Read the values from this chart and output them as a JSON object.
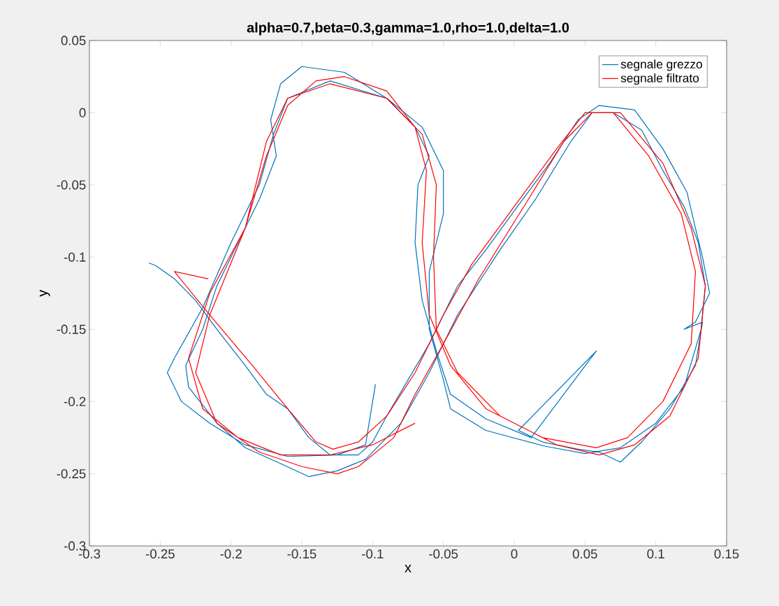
{
  "chart_data": {
    "type": "line",
    "title": "alpha=0.7,beta=0.3,gamma=1.0,rho=1.0,delta=1.0",
    "xlabel": "x",
    "ylabel": "y",
    "xlim": [
      -0.3,
      0.15
    ],
    "ylim": [
      -0.3,
      0.05
    ],
    "xticks": [
      -0.3,
      -0.25,
      -0.2,
      -0.15,
      -0.1,
      -0.05,
      0,
      0.05,
      0.1,
      0.15
    ],
    "yticks": [
      -0.3,
      -0.25,
      -0.2,
      -0.15,
      -0.1,
      -0.05,
      0,
      0.05
    ],
    "grid": false,
    "legend": "top right",
    "marker": "none",
    "line_style": "solid",
    "series": [
      {
        "name": "segnale grezzo",
        "color": "#0072bd",
        "x": [
          -0.258,
          -0.253,
          -0.24,
          -0.225,
          -0.21,
          -0.19,
          -0.175,
          -0.16,
          -0.145,
          -0.13,
          -0.11,
          -0.1,
          -0.09,
          -0.075,
          -0.06,
          -0.04,
          -0.02,
          0.0,
          0.025,
          0.045,
          0.06,
          0.085,
          0.105,
          0.122,
          0.128,
          0.133,
          0.138,
          0.128,
          0.12,
          0.133,
          0.128,
          0.11,
          0.09,
          0.075,
          0.06,
          0.045,
          0.02,
          0.003,
          0.058,
          0.012,
          -0.02,
          -0.045,
          -0.055,
          -0.065,
          -0.07,
          -0.068,
          -0.06,
          -0.07,
          -0.09,
          -0.12,
          -0.15,
          -0.165,
          -0.172,
          -0.168,
          -0.18,
          -0.195,
          -0.21,
          -0.22,
          -0.232,
          -0.23,
          -0.21,
          -0.19,
          -0.165,
          -0.145,
          -0.125,
          -0.105,
          -0.095,
          -0.08,
          -0.06,
          -0.04,
          -0.01,
          0.015,
          0.04,
          0.055,
          0.07,
          0.09,
          0.105,
          0.12,
          0.13,
          0.135,
          0.132,
          0.12,
          0.1,
          0.075,
          0.05,
          0.022,
          -0.02,
          -0.045,
          -0.05,
          -0.06,
          -0.06,
          -0.05,
          -0.05,
          -0.065,
          -0.09,
          -0.13,
          -0.16,
          -0.17,
          -0.18,
          -0.2,
          -0.22,
          -0.24,
          -0.245,
          -0.235,
          -0.215,
          -0.19,
          -0.16,
          -0.125,
          -0.105,
          -0.1,
          -0.098
        ],
        "values": [
          -0.104,
          -0.106,
          -0.115,
          -0.13,
          -0.15,
          -0.175,
          -0.195,
          -0.205,
          -0.225,
          -0.237,
          -0.237,
          -0.228,
          -0.21,
          -0.185,
          -0.16,
          -0.12,
          -0.095,
          -0.068,
          -0.035,
          -0.005,
          0.005,
          0.002,
          -0.025,
          -0.055,
          -0.08,
          -0.1,
          -0.125,
          -0.145,
          -0.15,
          -0.145,
          -0.175,
          -0.205,
          -0.228,
          -0.242,
          -0.235,
          -0.233,
          -0.228,
          -0.22,
          -0.165,
          -0.225,
          -0.212,
          -0.195,
          -0.165,
          -0.13,
          -0.09,
          -0.05,
          -0.03,
          -0.01,
          0.01,
          0.028,
          0.032,
          0.02,
          -0.005,
          -0.03,
          -0.06,
          -0.09,
          -0.12,
          -0.15,
          -0.175,
          -0.19,
          -0.215,
          -0.232,
          -0.243,
          -0.252,
          -0.248,
          -0.24,
          -0.23,
          -0.215,
          -0.18,
          -0.14,
          -0.095,
          -0.06,
          -0.02,
          0.0,
          0.0,
          -0.012,
          -0.04,
          -0.065,
          -0.09,
          -0.12,
          -0.15,
          -0.19,
          -0.215,
          -0.232,
          -0.236,
          -0.231,
          -0.22,
          -0.205,
          -0.185,
          -0.15,
          -0.11,
          -0.07,
          -0.04,
          -0.01,
          0.01,
          0.022,
          0.01,
          -0.015,
          -0.05,
          -0.09,
          -0.135,
          -0.17,
          -0.18,
          -0.2,
          -0.215,
          -0.23,
          -0.238,
          -0.237,
          -0.23,
          -0.2,
          -0.188
        ]
      },
      {
        "name": "segnale filtrato",
        "color": "#ff0000",
        "x": [
          -0.216,
          -0.24,
          -0.215,
          -0.185,
          -0.16,
          -0.14,
          -0.128,
          -0.11,
          -0.09,
          -0.07,
          -0.05,
          -0.03,
          0.0,
          0.03,
          0.05,
          0.07,
          0.095,
          0.118,
          0.128,
          0.125,
          0.105,
          0.08,
          0.058,
          0.02,
          -0.02,
          -0.045,
          -0.06,
          -0.065,
          -0.062,
          -0.07,
          -0.09,
          -0.12,
          -0.14,
          -0.16,
          -0.175,
          -0.19,
          -0.215,
          -0.225,
          -0.21,
          -0.18,
          -0.15,
          -0.125,
          -0.11,
          -0.085,
          -0.07,
          -0.05,
          -0.025,
          0.01,
          0.035,
          0.055,
          0.075,
          0.105,
          0.125,
          0.135,
          0.13,
          0.11,
          0.085,
          0.06,
          0.03,
          -0.01,
          -0.04,
          -0.055,
          -0.057,
          -0.055,
          -0.065,
          -0.09,
          -0.13,
          -0.16,
          -0.175,
          -0.19,
          -0.215,
          -0.23,
          -0.22,
          -0.195,
          -0.165,
          -0.13,
          -0.1,
          -0.07
        ],
        "values": [
          -0.115,
          -0.11,
          -0.14,
          -0.175,
          -0.205,
          -0.228,
          -0.233,
          -0.228,
          -0.21,
          -0.18,
          -0.14,
          -0.105,
          -0.065,
          -0.025,
          0.0,
          0.0,
          -0.03,
          -0.07,
          -0.11,
          -0.16,
          -0.2,
          -0.225,
          -0.232,
          -0.225,
          -0.205,
          -0.175,
          -0.14,
          -0.09,
          -0.04,
          -0.01,
          0.015,
          0.025,
          0.022,
          0.005,
          -0.03,
          -0.08,
          -0.14,
          -0.18,
          -0.215,
          -0.235,
          -0.245,
          -0.25,
          -0.245,
          -0.225,
          -0.195,
          -0.16,
          -0.115,
          -0.06,
          -0.02,
          0.0,
          0.0,
          -0.035,
          -0.08,
          -0.12,
          -0.17,
          -0.21,
          -0.23,
          -0.237,
          -0.23,
          -0.21,
          -0.18,
          -0.15,
          -0.1,
          -0.05,
          -0.015,
          0.01,
          0.02,
          0.01,
          -0.02,
          -0.08,
          -0.125,
          -0.17,
          -0.205,
          -0.225,
          -0.237,
          -0.237,
          -0.23,
          -0.215
        ]
      }
    ]
  }
}
